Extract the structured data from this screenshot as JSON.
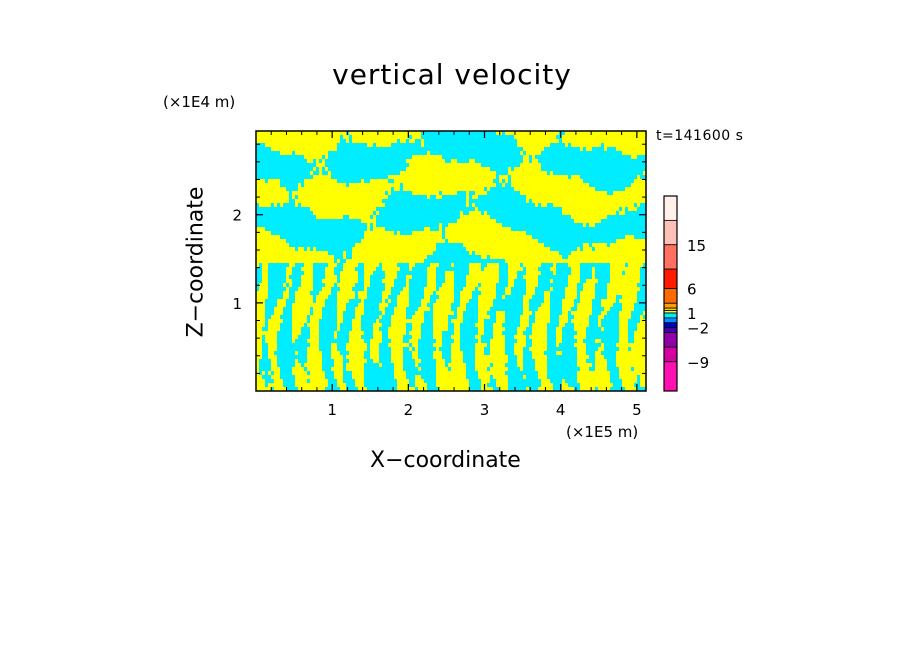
{
  "title": "vertical velocity",
  "time_label": "t=141600 s",
  "chart_data": {
    "type": "heatmap",
    "title": "vertical velocity",
    "xlabel": "X−coordinate",
    "ylabel": "Z−coordinate",
    "x_unit": "(×1E5 m)",
    "y_unit": "(×1E4 m)",
    "xlim": [
      0,
      5.12
    ],
    "ylim": [
      0,
      2.95
    ],
    "xticks": [
      "1",
      "2",
      "3",
      "4",
      "5"
    ],
    "yticks": [
      "1",
      "2"
    ],
    "xtick_values": [
      1,
      2,
      3,
      4,
      5
    ],
    "ytick_values": [
      1,
      2
    ],
    "colorbar": {
      "tick_labels": [
        "15",
        "6",
        "1",
        "−2",
        "−9"
      ],
      "levels": [
        {
          "lower": 20,
          "color": "#fff0ea"
        },
        {
          "lower": 15,
          "color": "#fcc0b8"
        },
        {
          "lower": 10,
          "color": "#ff7060"
        },
        {
          "lower": 6,
          "color": "#ff1a00"
        },
        {
          "lower": 3,
          "color": "#ff6a00"
        },
        {
          "lower": 2,
          "color": "#ff9e00"
        },
        {
          "lower": 1.5,
          "color": "#ffd000"
        },
        {
          "lower": 1,
          "color": "#ffff00"
        },
        {
          "lower": 0,
          "color": "#00ecff"
        },
        {
          "lower": -1,
          "color": "#0090ff"
        },
        {
          "lower": -2,
          "color": "#0000cc"
        },
        {
          "lower": -3,
          "color": "#4400aa"
        },
        {
          "lower": -6,
          "color": "#9000a8"
        },
        {
          "lower": -9,
          "color": "#d400a0"
        },
        {
          "lower": -12,
          "color": "#ff10b0"
        }
      ]
    },
    "field_colors": {
      "positive": "#ffff00",
      "negative": "#00ecff"
    }
  }
}
